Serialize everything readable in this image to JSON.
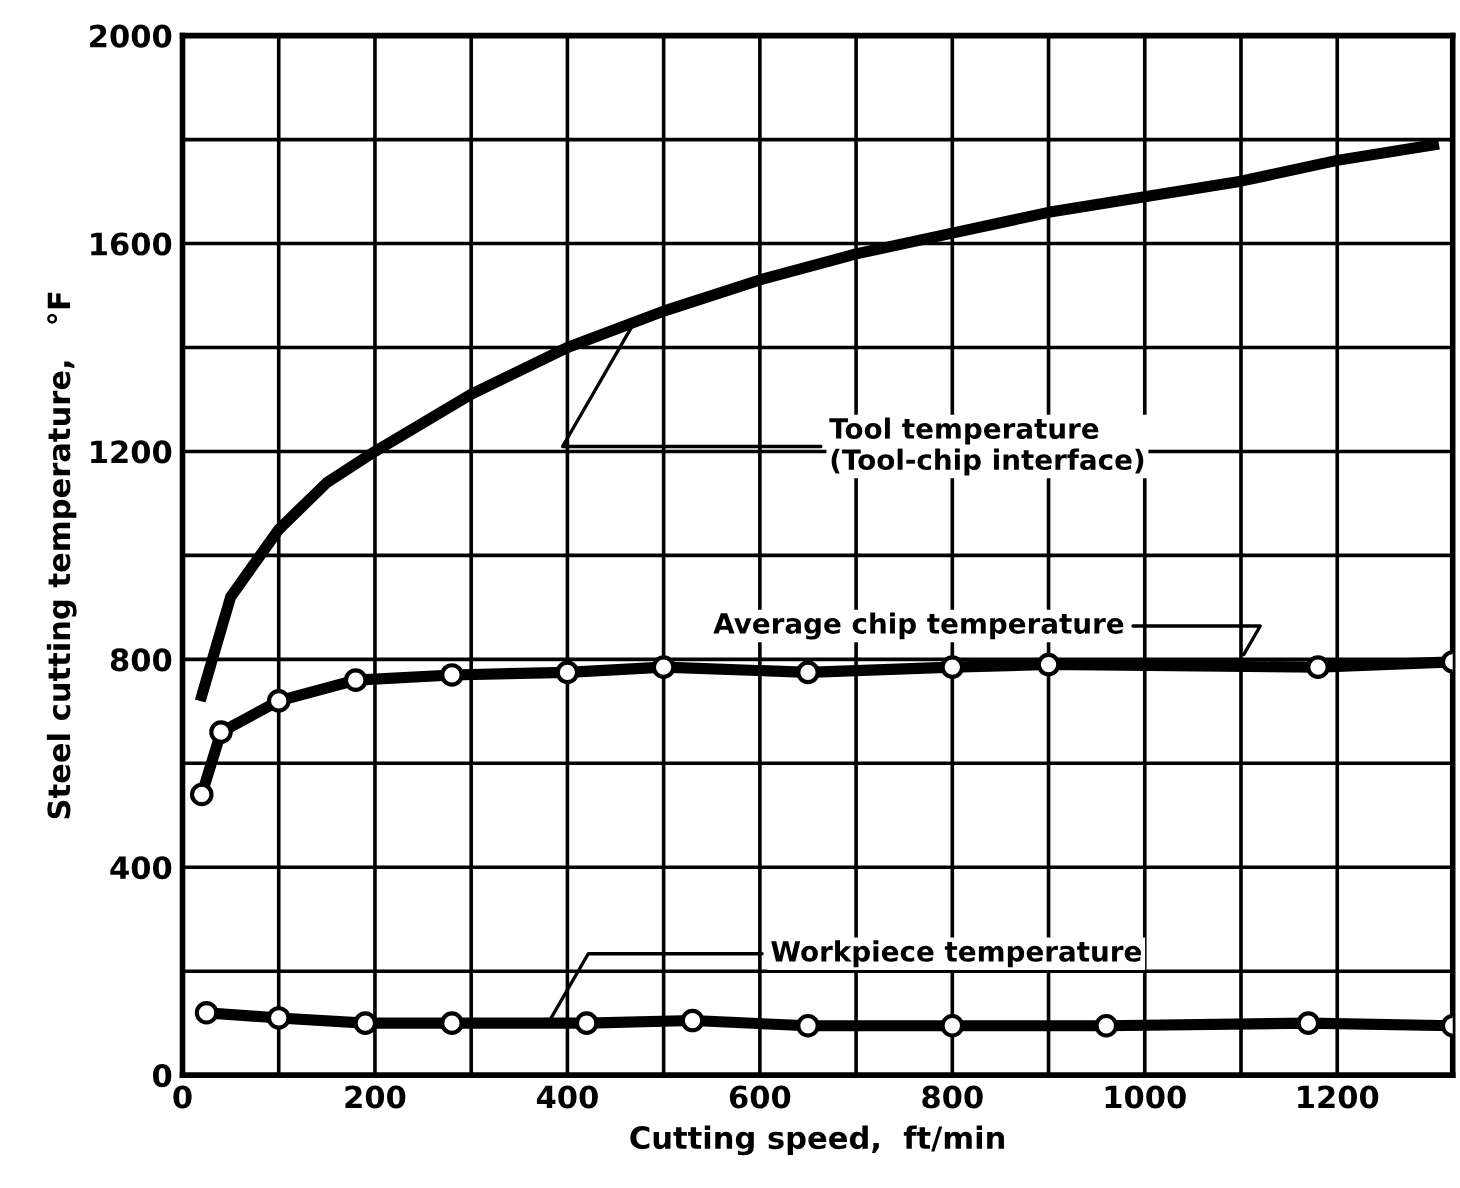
{
  "chart_data": {
    "type": "line",
    "xlabel": "Cutting speed,  ft/min",
    "ylabel": "Steel cutting temperature,   °F",
    "series": [
      {
        "x": [
          20,
          50,
          100,
          150,
          200,
          300,
          400,
          500,
          600,
          700,
          800,
          900,
          1000,
          1100,
          1200,
          1300
        ],
        "values": [
          730,
          920,
          1050,
          1140,
          1200,
          1310,
          1400,
          1470,
          1530,
          1580,
          1620,
          1660,
          1690,
          1720,
          1760,
          1790
        ],
        "color": "#000000",
        "marker": "none"
      },
      {
        "x": [
          20,
          40,
          100,
          180,
          280,
          400,
          500,
          650,
          800,
          900,
          1180,
          1320
        ],
        "values": [
          540,
          660,
          720,
          760,
          770,
          775,
          785,
          775,
          785,
          790,
          785,
          795
        ],
        "color": "#000000",
        "marker": "circle"
      },
      {
        "x": [
          25,
          100,
          190,
          280,
          420,
          530,
          650,
          800,
          960,
          1170,
          1320
        ],
        "values": [
          120,
          110,
          100,
          100,
          100,
          105,
          95,
          95,
          95,
          100,
          95
        ],
        "color": "#000000",
        "marker": "circle"
      }
    ],
    "annotations": [
      {
        "text": "Tool temperature\n(Tool-chip interface)",
        "x": 470,
        "y": 1450
      },
      {
        "text": "Average chip temperature",
        "x": 1100,
        "y": 800
      },
      {
        "text": "Workpiece temperature",
        "x": 380,
        "y": 100
      }
    ],
    "xlim": [
      0,
      1320
    ],
    "ylim": [
      0,
      2000
    ],
    "xticks": [
      0,
      {
        "value": 100,
        "label": null
      },
      200,
      {
        "value": 300,
        "label": null
      },
      400,
      {
        "value": 500,
        "label": null
      },
      600,
      {
        "value": 700,
        "label": null
      },
      800,
      {
        "value": 900,
        "label": null
      },
      1000,
      {
        "value": 1100,
        "label": null
      },
      1200
    ],
    "yticks": [
      0,
      {
        "value": 200,
        "label": null
      },
      400,
      {
        "value": 600,
        "label": null
      },
      800,
      {
        "value": 1000,
        "label": null
      },
      1200,
      {
        "value": 1400,
        "label": null
      },
      1600,
      {
        "value": 1800,
        "label": null
      },
      2000
    ],
    "grid": true,
    "line_style": "solid"
  }
}
